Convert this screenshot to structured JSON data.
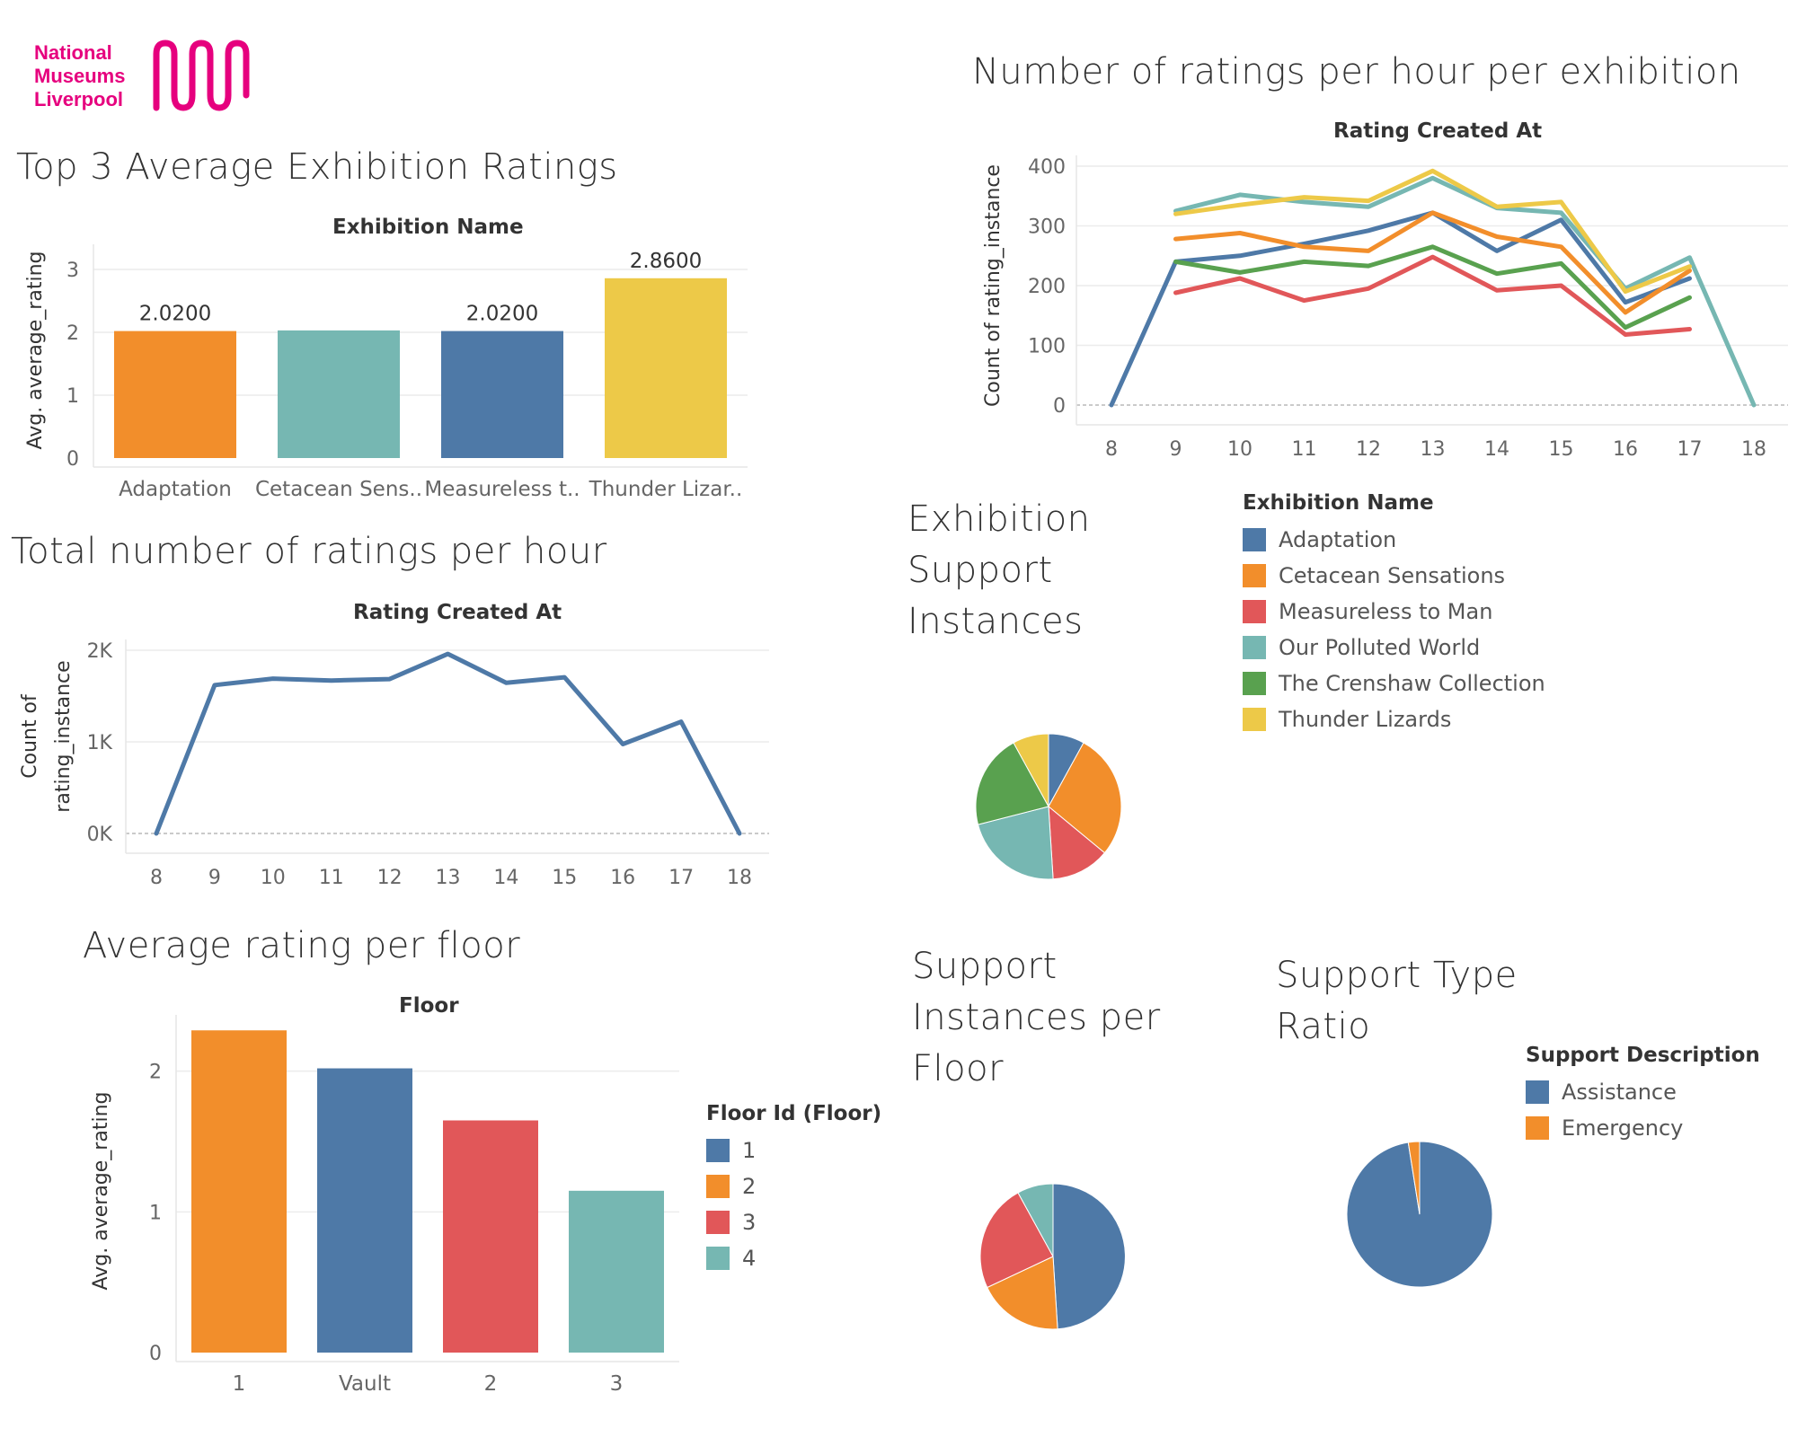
{
  "logo": {
    "lines": [
      "National",
      "Museums",
      "Liverpool"
    ]
  },
  "titles": {
    "top3": "Top 3 Average Exhibition Ratings",
    "per_hour_exhibition": "Number of ratings per hour per exhibition",
    "total_per_hour": "Total number of ratings per hour",
    "exhibition_support": "Exhibition Support Instances",
    "avg_floor": "Average rating per floor",
    "support_floor": "Support Instances per Floor",
    "support_type": "Support Type Ratio"
  },
  "colors": {
    "blue": "#4e79a7",
    "orange": "#f28e2b",
    "red": "#e15759",
    "teal": "#76b7b2",
    "green": "#59a14f",
    "yellow": "#edc948"
  },
  "legends": {
    "exhibition": {
      "title": "Exhibition Name",
      "items": [
        {
          "label": "Adaptation",
          "color": "#4e79a7"
        },
        {
          "label": "Cetacean Sensations",
          "color": "#f28e2b"
        },
        {
          "label": "Measureless to Man",
          "color": "#e15759"
        },
        {
          "label": "Our Polluted World",
          "color": "#76b7b2"
        },
        {
          "label": "The Crenshaw Collection",
          "color": "#59a14f"
        },
        {
          "label": "Thunder Lizards",
          "color": "#edc948"
        }
      ]
    },
    "floor": {
      "title": "Floor Id (Floor)",
      "items": [
        {
          "label": "1",
          "color": "#4e79a7"
        },
        {
          "label": "2",
          "color": "#f28e2b"
        },
        {
          "label": "3",
          "color": "#e15759"
        },
        {
          "label": "4",
          "color": "#76b7b2"
        }
      ]
    },
    "support": {
      "title": "Support Description",
      "items": [
        {
          "label": "Assistance",
          "color": "#4e79a7"
        },
        {
          "label": "Emergency",
          "color": "#f28e2b"
        }
      ]
    }
  },
  "chart_data": [
    {
      "id": "top3",
      "type": "bar",
      "header": "Exhibition Name",
      "ylabel": "Avg. average_rating",
      "ylim": [
        0,
        3.4
      ],
      "yticks": [
        0,
        1,
        2,
        3
      ],
      "categories": [
        "Adaptation",
        "Cetacean Sens..",
        "Measureless t..",
        "Thunder Lizar.."
      ],
      "values": [
        2.02,
        2.03,
        2.02,
        2.86
      ],
      "data_labels": [
        "2.0200",
        "",
        "2.0200",
        "2.8600"
      ],
      "colors": [
        "#f28e2b",
        "#76b7b2",
        "#4e79a7",
        "#edc948"
      ]
    },
    {
      "id": "per_hour_exhibition",
      "type": "line",
      "header": "Rating Created At",
      "ylabel": "Count of rating_instance",
      "ylim": [
        0,
        400
      ],
      "yticks": [
        0,
        100,
        200,
        300,
        400
      ],
      "x": [
        8,
        9,
        10,
        11,
        12,
        13,
        14,
        15,
        16,
        17,
        18
      ],
      "series": [
        {
          "name": "Adaptation",
          "color": "#4e79a7",
          "values": [
            0,
            240,
            250,
            270,
            292,
            322,
            258,
            310,
            172,
            212,
            null
          ]
        },
        {
          "name": "Cetacean Sensations",
          "color": "#f28e2b",
          "values": [
            null,
            278,
            288,
            265,
            258,
            322,
            282,
            265,
            155,
            225,
            null
          ]
        },
        {
          "name": "Measureless to Man",
          "color": "#e15759",
          "values": [
            null,
            188,
            212,
            175,
            195,
            248,
            192,
            200,
            118,
            127,
            null
          ]
        },
        {
          "name": "Our Polluted World",
          "color": "#76b7b2",
          "values": [
            null,
            325,
            352,
            340,
            332,
            380,
            330,
            322,
            195,
            247,
            0
          ]
        },
        {
          "name": "The Crenshaw Collection",
          "color": "#59a14f",
          "values": [
            null,
            240,
            222,
            240,
            233,
            265,
            220,
            237,
            130,
            180,
            null
          ]
        },
        {
          "name": "Thunder Lizards",
          "color": "#edc948",
          "values": [
            null,
            320,
            335,
            348,
            342,
            392,
            332,
            340,
            190,
            232,
            null
          ]
        }
      ]
    },
    {
      "id": "total_per_hour",
      "type": "line",
      "header": "Rating Created At",
      "ylabel_lines": [
        "Count of",
        "rating_instance"
      ],
      "ylim": [
        0,
        2000
      ],
      "yticks": [
        0,
        1000,
        2000
      ],
      "ytick_labels": [
        "0K",
        "1K",
        "2K"
      ],
      "x": [
        8,
        9,
        10,
        11,
        12,
        13,
        14,
        15,
        16,
        17,
        18
      ],
      "series": [
        {
          "color": "#4e79a7",
          "values": [
            0,
            1620,
            1690,
            1670,
            1685,
            1960,
            1645,
            1705,
            975,
            1220,
            0
          ]
        }
      ]
    },
    {
      "id": "exhibition_support",
      "type": "pie",
      "slices": [
        {
          "label": "Adaptation",
          "value": 8,
          "color": "#4e79a7"
        },
        {
          "label": "Cetacean Sensations",
          "value": 28,
          "color": "#f28e2b"
        },
        {
          "label": "Measureless to Man",
          "value": 13,
          "color": "#e15759"
        },
        {
          "label": "Our Polluted World",
          "value": 22,
          "color": "#76b7b2"
        },
        {
          "label": "The Crenshaw Collection",
          "value": 21,
          "color": "#59a14f"
        },
        {
          "label": "Thunder Lizards",
          "value": 8,
          "color": "#edc948"
        }
      ]
    },
    {
      "id": "avg_floor",
      "type": "bar",
      "header": "Floor",
      "ylabel": "Avg. average_rating",
      "ylim": [
        0,
        2.4
      ],
      "yticks": [
        0,
        1,
        2
      ],
      "categories": [
        "1",
        "Vault",
        "2",
        "3"
      ],
      "values": [
        2.29,
        2.02,
        1.65,
        1.15
      ],
      "colors": [
        "#f28e2b",
        "#4e79a7",
        "#e15759",
        "#76b7b2"
      ]
    },
    {
      "id": "support_floor",
      "type": "pie",
      "slices": [
        {
          "label": "1",
          "value": 49,
          "color": "#4e79a7"
        },
        {
          "label": "2",
          "value": 19,
          "color": "#f28e2b"
        },
        {
          "label": "3",
          "value": 24,
          "color": "#e15759"
        },
        {
          "label": "4",
          "value": 8,
          "color": "#76b7b2"
        }
      ]
    },
    {
      "id": "support_type",
      "type": "pie",
      "slices": [
        {
          "label": "Assistance",
          "value": 97.5,
          "color": "#4e79a7"
        },
        {
          "label": "Emergency",
          "value": 2.5,
          "color": "#f28e2b"
        }
      ]
    }
  ]
}
